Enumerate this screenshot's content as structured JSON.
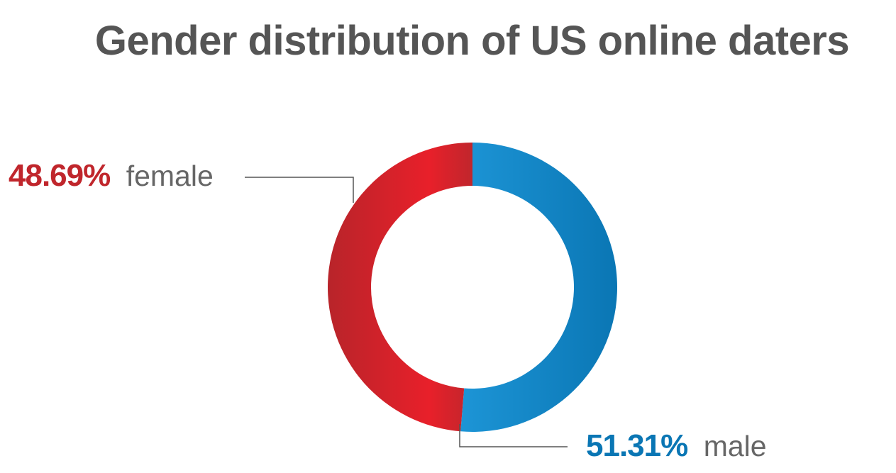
{
  "chart_data": {
    "type": "pie",
    "variant": "donut",
    "title": "Gender distribution of US online daters",
    "unit": "%",
    "slices": [
      {
        "name": "male",
        "value": 51.31,
        "value_label": "51.31%",
        "label": "male",
        "color": "#0a7fc0",
        "color_light": "#1d95d6"
      },
      {
        "name": "female",
        "value": 48.69,
        "value_label": "48.69%",
        "label": "female",
        "color": "#c0262c",
        "color_light": "#e8202a"
      }
    ]
  }
}
